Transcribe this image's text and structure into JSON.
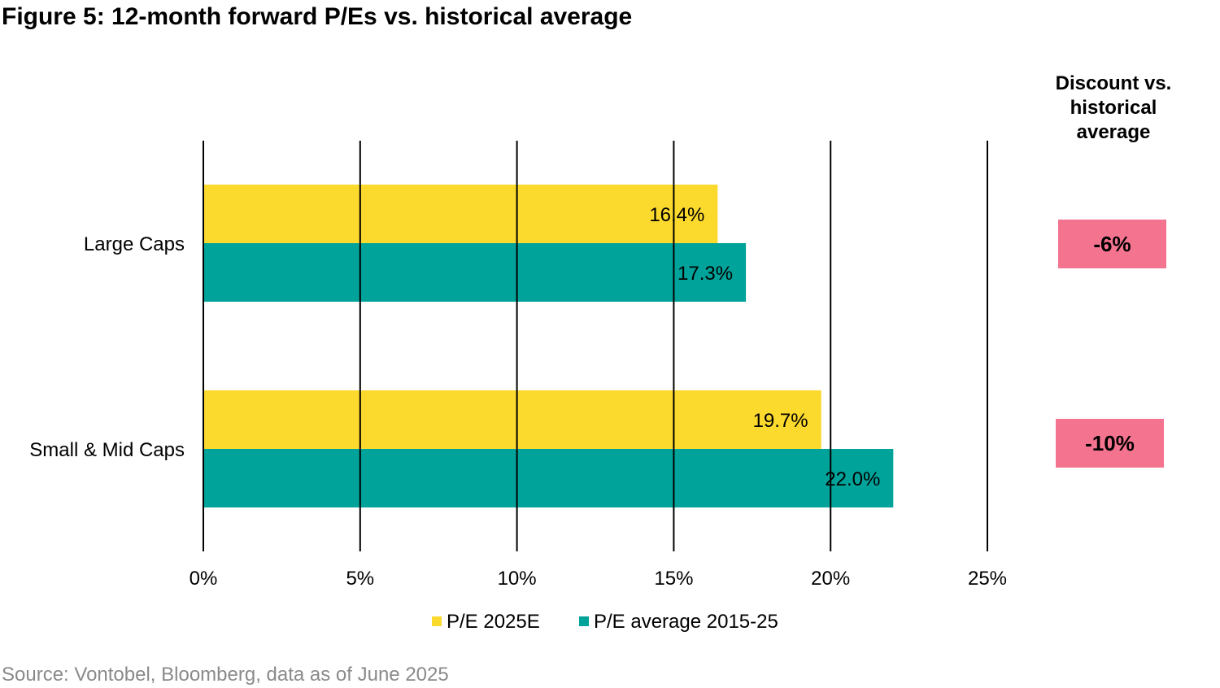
{
  "title": "Figure 5: 12-month forward P/Es vs. historical average",
  "source": "Source: Vontobel, Bloomberg, data as of June 2025",
  "discount": {
    "header_lines": [
      "Discount vs.",
      "historical",
      "average"
    ],
    "values": [
      "-6%",
      "-10%"
    ],
    "badge_color": "#f4738f"
  },
  "chart_data": {
    "type": "bar",
    "orientation": "horizontal",
    "categories": [
      "Large Caps",
      "Small & Mid Caps"
    ],
    "series": [
      {
        "name": "P/E 2025E",
        "values": [
          16.4,
          19.7
        ],
        "labels": [
          "16.4%",
          "19.7%"
        ],
        "color": "#fcd92d"
      },
      {
        "name": "P/E average 2015-25",
        "values": [
          17.3,
          22.0
        ],
        "labels": [
          "17.3%",
          "22.0%"
        ],
        "color": "#00a39a"
      }
    ],
    "xlim": [
      0,
      25
    ],
    "xticks": [
      0,
      5,
      10,
      15,
      20,
      25
    ],
    "xtick_labels": [
      "0%",
      "5%",
      "10%",
      "15%",
      "20%",
      "25%"
    ],
    "grid": true,
    "legend": "bottom"
  }
}
